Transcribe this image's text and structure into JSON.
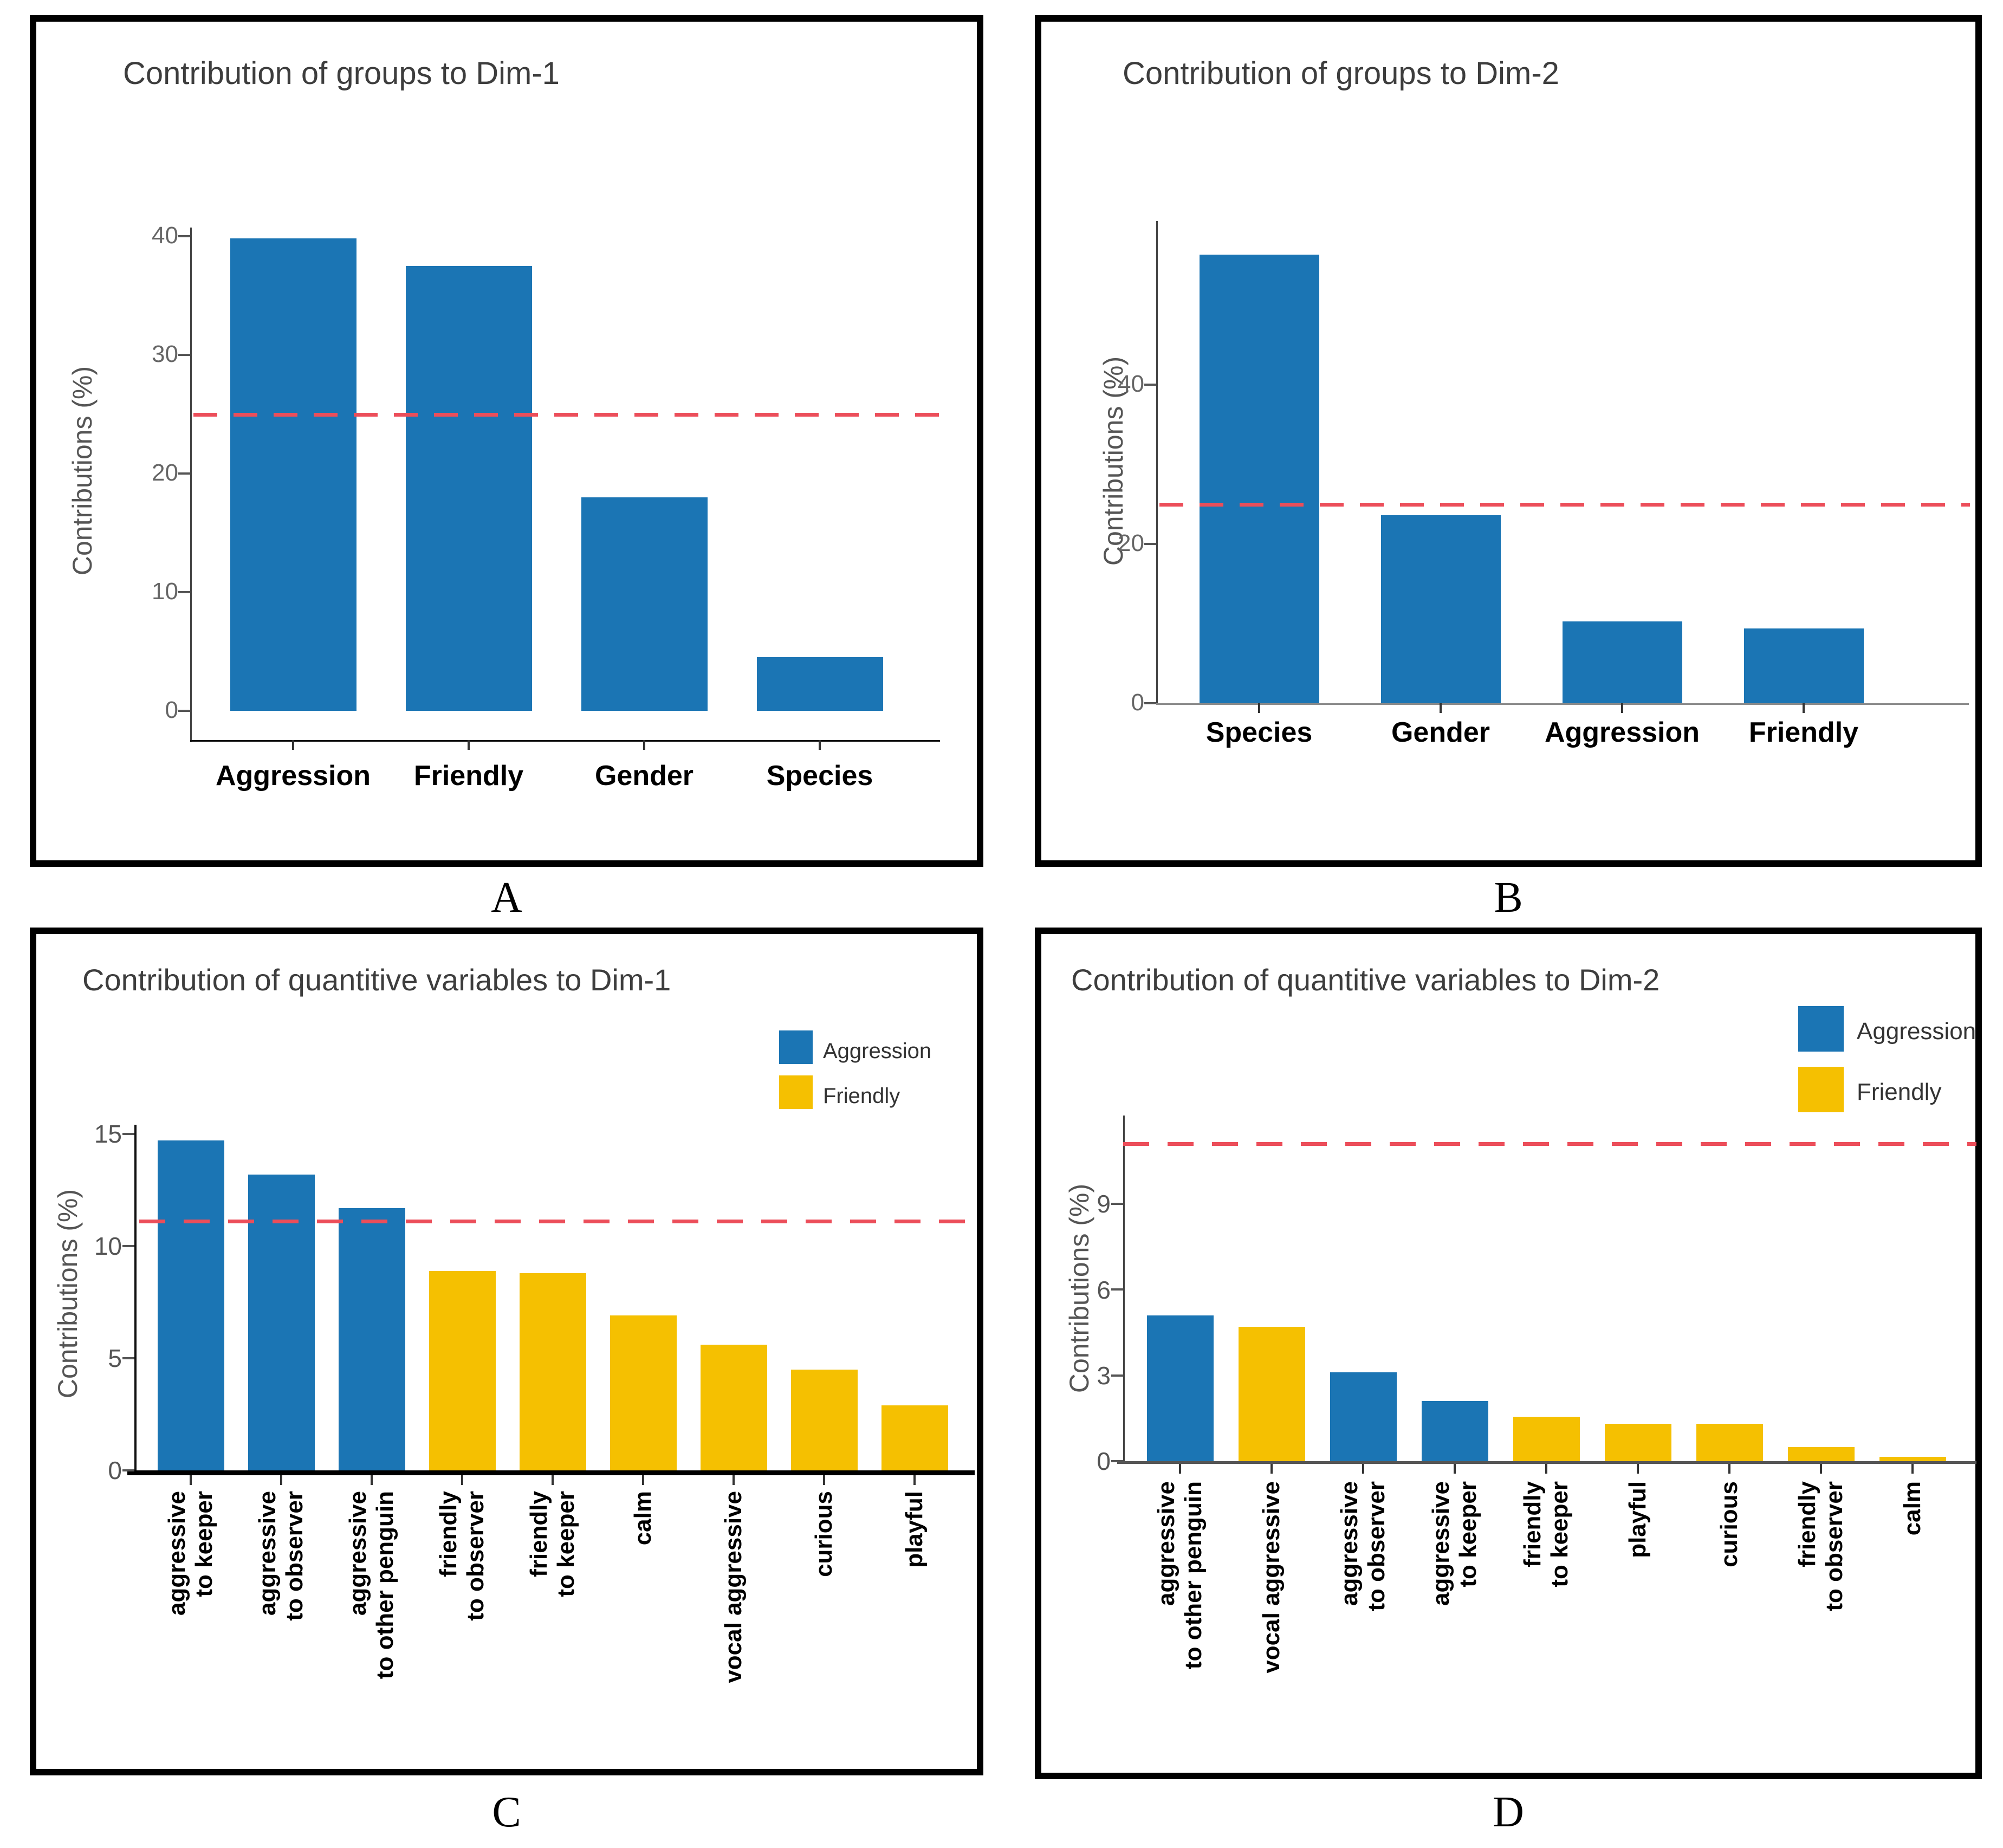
{
  "page": {
    "panel_letters": [
      "A",
      "B",
      "C",
      "D"
    ]
  },
  "colors": {
    "aggression_blue": "#1b75b4",
    "friendly_yellow": "#f5c001",
    "threshold_red": "#ec4e5a",
    "title_gray": "#3d3d3d"
  },
  "chart_data": [
    {
      "id": "A",
      "panel_letter": "A",
      "type": "bar",
      "title": "Contribution of groups to Dim-1",
      "ylabel": "Contributions (%)",
      "categories": [
        "Aggression",
        "Friendly",
        "Gender",
        "Species"
      ],
      "values": [
        39.8,
        37.5,
        18.0,
        4.5
      ],
      "bar_color": "#1b75b4",
      "yticks": [
        0,
        10,
        20,
        30,
        40
      ],
      "ylim": [
        0,
        41
      ],
      "threshold": 25,
      "threshold_color": "#ec4e5a",
      "grid": "off",
      "legend": null
    },
    {
      "id": "B",
      "panel_letter": "B",
      "type": "bar",
      "title": "Contribution of groups to Dim-2",
      "ylabel": "Contributions (%)",
      "categories": [
        "Species",
        "Gender",
        "Aggression",
        "Friendly"
      ],
      "values": [
        56.3,
        23.6,
        10.3,
        9.4
      ],
      "bar_color": "#1b75b4",
      "yticks": [
        0,
        20,
        40
      ],
      "ylim": [
        0,
        60.5
      ],
      "threshold": 25,
      "threshold_color": "#ec4e5a",
      "grid": "off",
      "legend": null
    },
    {
      "id": "C",
      "panel_letter": "C",
      "type": "bar",
      "title": "Contribution of quantitive variables to Dim-1",
      "ylabel": "Contributions (%)",
      "categories": [
        "aggressive\nto keeper",
        "aggressive\nto observer",
        "aggressive\nto other penguin",
        "friendly\nto observer",
        "friendly\nto keeper",
        "calm",
        "vocal aggressive",
        "curious",
        "playful"
      ],
      "values": [
        14.7,
        13.2,
        11.7,
        8.9,
        8.8,
        6.9,
        5.6,
        4.5,
        2.9
      ],
      "groups": [
        "Aggression",
        "Aggression",
        "Aggression",
        "Friendly",
        "Friendly",
        "Friendly",
        "Friendly",
        "Friendly",
        "Friendly"
      ],
      "yticks": [
        0,
        5,
        10,
        15
      ],
      "ylim": [
        0,
        15.3
      ],
      "threshold": 11.1,
      "threshold_color": "#ec4e5a",
      "grid": "off",
      "xlabel_rotation": 90,
      "legend": [
        {
          "label": "Aggression",
          "color": "#1b75b4"
        },
        {
          "label": "Friendly",
          "color": "#f5c001"
        }
      ]
    },
    {
      "id": "D",
      "panel_letter": "D",
      "type": "bar",
      "title": "Contribution of quantitive variables to Dim-2",
      "ylabel": "Contributions (%)",
      "categories": [
        "aggressive\nto other penguin",
        "vocal aggressive",
        "aggressive\nto observer",
        "aggressive\nto keeper",
        "friendly\nto keeper",
        "playful",
        "curious",
        "friendly\nto observer",
        "calm"
      ],
      "values": [
        5.1,
        4.7,
        3.1,
        2.1,
        1.55,
        1.3,
        1.3,
        0.5,
        0.15
      ],
      "groups": [
        "Aggression",
        "Friendly",
        "Aggression",
        "Aggression",
        "Friendly",
        "Friendly",
        "Friendly",
        "Friendly",
        "Friendly"
      ],
      "yticks": [
        0,
        3,
        6,
        9
      ],
      "ylim": [
        0,
        12.1
      ],
      "threshold": 11.1,
      "threshold_color": "#ec4e5a",
      "grid": "off",
      "xlabel_rotation": 90,
      "legend": [
        {
          "label": "Aggression",
          "color": "#1b75b4"
        },
        {
          "label": "Friendly",
          "color": "#f5c001"
        }
      ]
    }
  ]
}
